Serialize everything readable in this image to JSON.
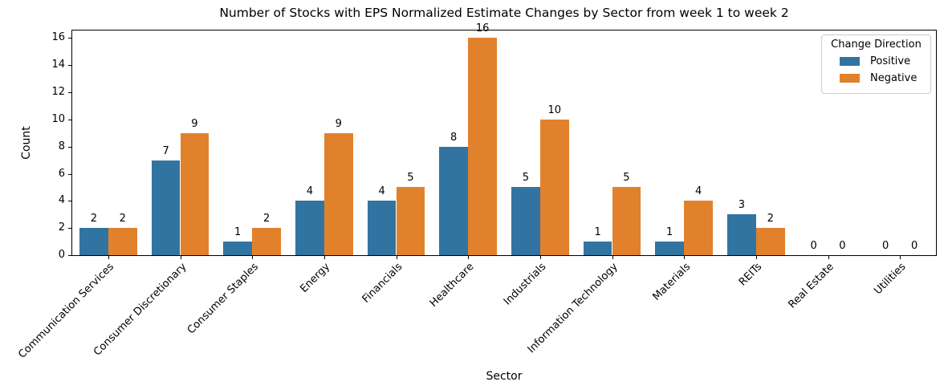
{
  "figure": {
    "background": "#ffffff"
  },
  "chart_data": {
    "type": "bar",
    "title": "Number of Stocks with EPS Normalized Estimate Changes by Sector from week 1 to week 2",
    "xlabel": "Sector",
    "ylabel": "Count",
    "legend_title": "Change Direction",
    "legend_position": "upper right",
    "grid": false,
    "bar_value_labels": true,
    "xtick_rotation": 45,
    "categories": [
      "Communication Services",
      "Consumer Discretionary",
      "Consumer Staples",
      "Energy",
      "Financials",
      "Healthcare",
      "Industrials",
      "Information Technology",
      "Materials",
      "REITs",
      "Real Estate",
      "Utilities"
    ],
    "series": [
      {
        "name": "Positive",
        "color": "#3274a1",
        "values": [
          2,
          7,
          1,
          4,
          4,
          8,
          5,
          1,
          1,
          3,
          0,
          0
        ]
      },
      {
        "name": "Negative",
        "color": "#e1812c",
        "values": [
          2,
          9,
          2,
          9,
          5,
          16,
          10,
          5,
          4,
          2,
          0,
          0
        ]
      }
    ],
    "yticks": [
      0,
      2,
      4,
      6,
      8,
      10,
      12,
      14,
      16
    ],
    "ylim": [
      0,
      16.55
    ]
  }
}
